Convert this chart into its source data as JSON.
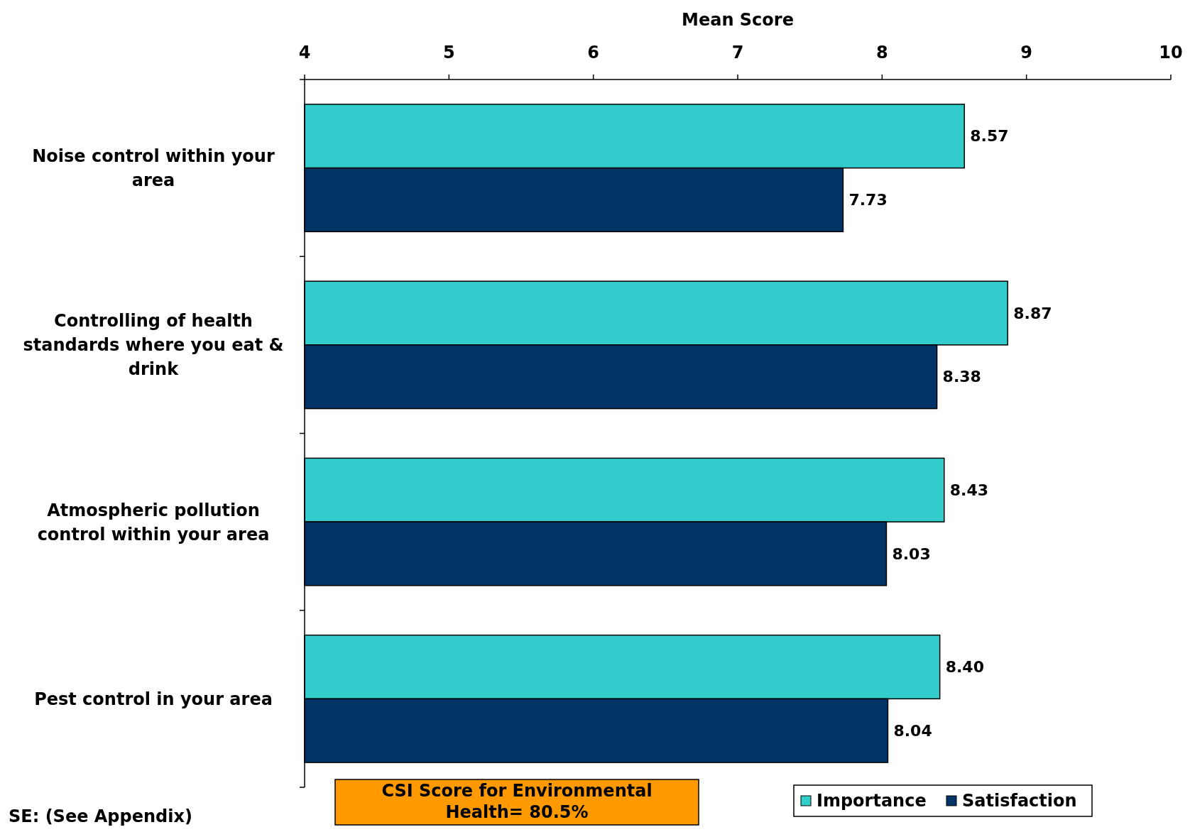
{
  "chart_data": {
    "type": "bar",
    "orientation": "horizontal",
    "xlabel": "Mean Score",
    "categories": [
      "Noise control within your area",
      "Controlling of health standards where you eat & drink",
      "Atmospheric pollution control within your area",
      "Pest control in your area"
    ],
    "series": [
      {
        "name": "Importance",
        "color": "#33cccc",
        "values": [
          8.57,
          8.87,
          8.43,
          8.4
        ],
        "value_labels": [
          "8.57",
          "8.87",
          "8.43",
          "8.40"
        ]
      },
      {
        "name": "Satisfaction",
        "color": "#003366",
        "values": [
          7.73,
          8.38,
          8.03,
          8.04
        ],
        "value_labels": [
          "7.73",
          "8.38",
          "8.03",
          "8.04"
        ]
      }
    ],
    "xlim": [
      4,
      10
    ],
    "xticks": [
      4,
      5,
      6,
      7,
      8,
      9,
      10
    ],
    "legend": "bottom right",
    "grid": false,
    "annotations": [
      "CSI Score for Environmental Health= 80.5%",
      "SE: (See Appendix)"
    ]
  }
}
